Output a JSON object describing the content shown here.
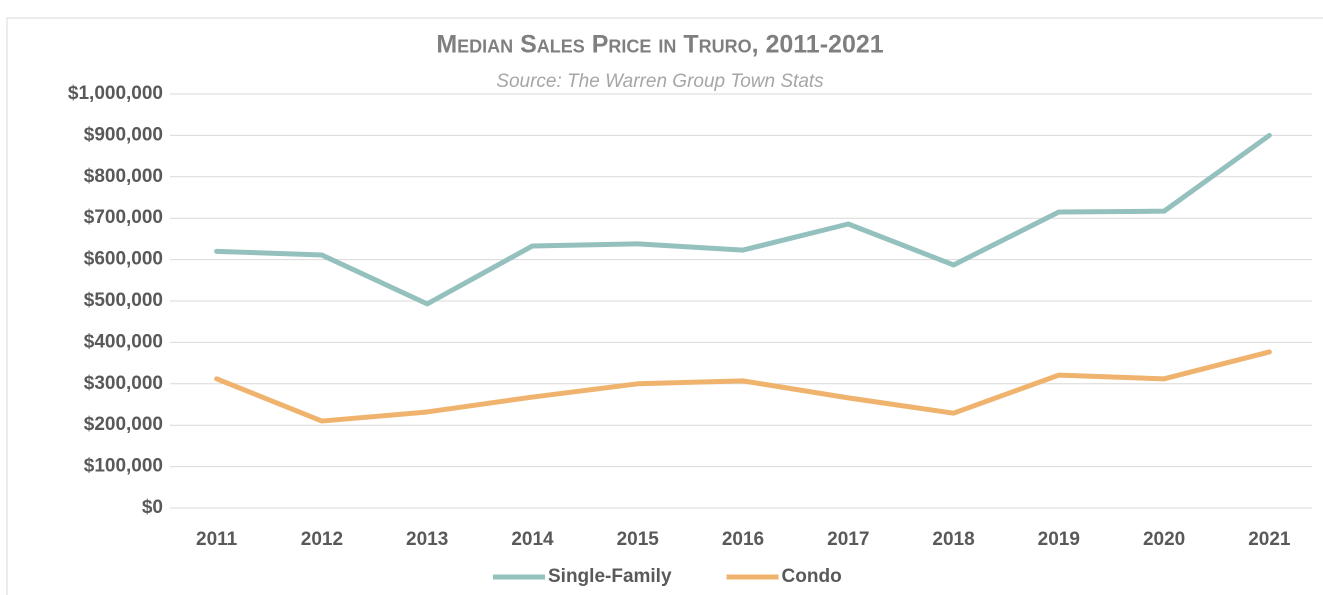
{
  "chart_data": {
    "type": "line",
    "title": "Median Sales Price in Truro, 2011-2021",
    "subtitle": "Source: The Warren Group Town Stats",
    "categories": [
      "2011",
      "2012",
      "2013",
      "2014",
      "2015",
      "2016",
      "2017",
      "2018",
      "2019",
      "2020",
      "2021"
    ],
    "series": [
      {
        "name": "Single-Family",
        "color": "#94c1bd",
        "values": [
          620000,
          611000,
          493000,
          633000,
          638000,
          623000,
          686000,
          587000,
          715000,
          717000,
          900000
        ]
      },
      {
        "name": "Condo",
        "color": "#efb36e",
        "values": [
          312000,
          210000,
          232000,
          268000,
          300000,
          307000,
          266000,
          229000,
          321000,
          312000,
          377000
        ]
      }
    ],
    "ylim": [
      0,
      1000000
    ],
    "yticks": [
      {
        "value": 0,
        "label": "$0"
      },
      {
        "value": 100000,
        "label": "$100,000"
      },
      {
        "value": 200000,
        "label": "$200,000"
      },
      {
        "value": 300000,
        "label": "$300,000"
      },
      {
        "value": 400000,
        "label": "$400,000"
      },
      {
        "value": 500000,
        "label": "$500,000"
      },
      {
        "value": 600000,
        "label": "$600,000"
      },
      {
        "value": 700000,
        "label": "$700,000"
      },
      {
        "value": 800000,
        "label": "$800,000"
      },
      {
        "value": 900000,
        "label": "$900,000"
      },
      {
        "value": 1000000,
        "label": "$1,000,000"
      }
    ],
    "grid": true,
    "legend": "bottom"
  }
}
